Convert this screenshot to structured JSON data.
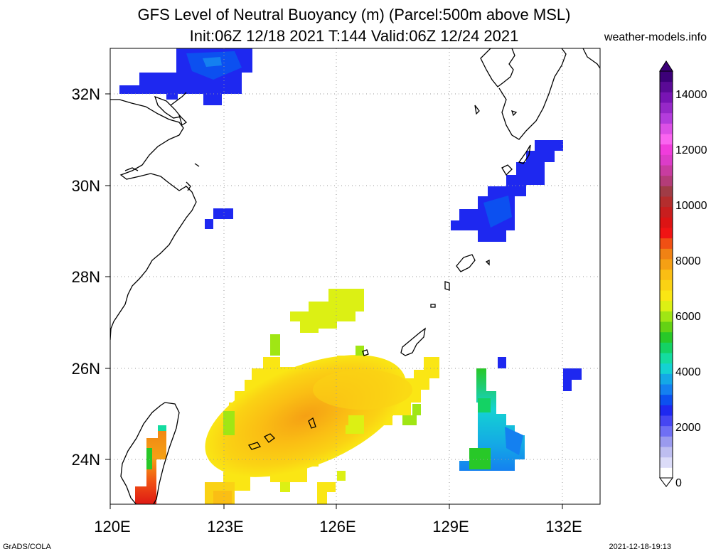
{
  "title_line1": "GFS Level of Neutral Buoyancy (m) (Parcel:500m above MSL)",
  "title_line2": "Init:06Z 12/18 2021 T:144 Valid:06Z 12/24 2021",
  "site": "weather-models.info",
  "footer_left": "GrADS/COLA",
  "footer_right": "2021-12-18-19:13",
  "map": {
    "lon_range": [
      120,
      133
    ],
    "lat_range": [
      23,
      33
    ],
    "x_ticks": [
      "120E",
      "123E",
      "126E",
      "129E",
      "132E"
    ],
    "y_ticks": [
      "24N",
      "26N",
      "28N",
      "30N",
      "32N"
    ]
  },
  "colorbar": {
    "labels": [
      "0",
      "2000",
      "4000",
      "6000",
      "8000",
      "10000",
      "12000",
      "14000"
    ],
    "colors": [
      "#ffffff",
      "#dcdcf8",
      "#bebef0",
      "#9a9aee",
      "#6f6ff4",
      "#4646f2",
      "#1e28f0",
      "#0c50f0",
      "#1480f0",
      "#14a8e6",
      "#14d2d2",
      "#14dca0",
      "#14d264",
      "#28c828",
      "#64d214",
      "#a0e614",
      "#dcf014",
      "#fae614",
      "#fad214",
      "#fabe14",
      "#f5a014",
      "#f08214",
      "#f05014",
      "#f01414",
      "#dc1414",
      "#c81e1e",
      "#b42d2d",
      "#a03c46",
      "#b43c78",
      "#c83ca0",
      "#dc3cc8",
      "#f03cdc",
      "#fa64f0",
      "#dc50e6",
      "#b43cdc",
      "#9628c8",
      "#7814b4",
      "#5a0a96",
      "#3c0078"
    ]
  }
}
